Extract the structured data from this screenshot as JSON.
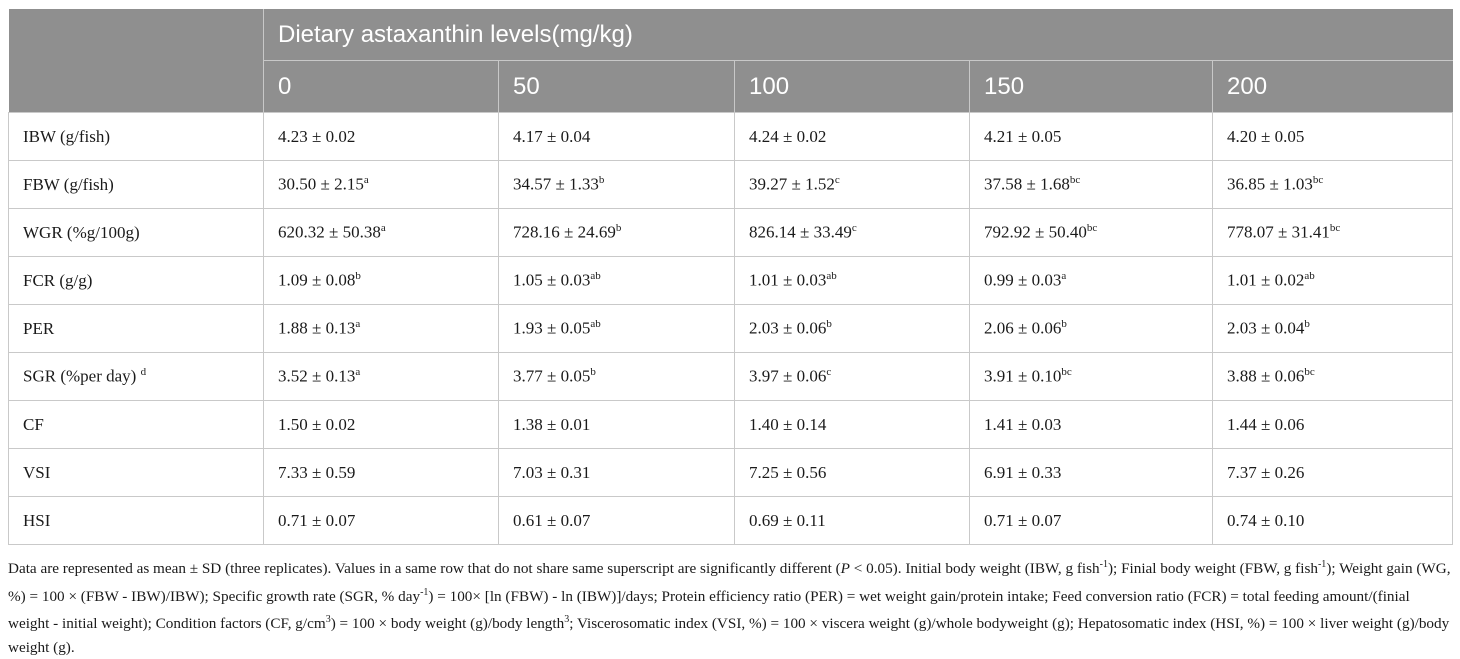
{
  "table": {
    "group_header": "Dietary astaxanthin levels(mg/kg)",
    "columns": [
      "0",
      "50",
      "100",
      "150",
      "200"
    ],
    "rows": [
      {
        "label": "IBW (g/fish)",
        "label_sup": "",
        "cells": [
          {
            "v": "4.23 ± 0.02",
            "s": ""
          },
          {
            "v": "4.17 ± 0.04",
            "s": ""
          },
          {
            "v": "4.24 ± 0.02",
            "s": ""
          },
          {
            "v": "4.21 ± 0.05",
            "s": ""
          },
          {
            "v": "4.20 ± 0.05",
            "s": ""
          }
        ]
      },
      {
        "label": "FBW (g/fish)",
        "label_sup": "",
        "cells": [
          {
            "v": "30.50 ± 2.15",
            "s": "a"
          },
          {
            "v": "34.57 ± 1.33",
            "s": "b"
          },
          {
            "v": "39.27 ± 1.52",
            "s": "c"
          },
          {
            "v": "37.58 ± 1.68",
            "s": "bc"
          },
          {
            "v": "36.85 ± 1.03",
            "s": "bc"
          }
        ]
      },
      {
        "label": "WGR (%g/100g)",
        "label_sup": "",
        "cells": [
          {
            "v": "620.32 ± 50.38",
            "s": "a"
          },
          {
            "v": "728.16 ± 24.69",
            "s": "b"
          },
          {
            "v": "826.14 ± 33.49",
            "s": "c"
          },
          {
            "v": "792.92 ± 50.40",
            "s": "bc"
          },
          {
            "v": "778.07 ± 31.41",
            "s": "bc"
          }
        ]
      },
      {
        "label": "FCR (g/g)",
        "label_sup": "",
        "cells": [
          {
            "v": "1.09 ± 0.08",
            "s": "b"
          },
          {
            "v": "1.05 ± 0.03",
            "s": "ab"
          },
          {
            "v": "1.01 ± 0.03",
            "s": "ab"
          },
          {
            "v": "0.99 ± 0.03",
            "s": "a"
          },
          {
            "v": "1.01 ± 0.02",
            "s": "ab"
          }
        ]
      },
      {
        "label": "PER",
        "label_sup": "",
        "cells": [
          {
            "v": "1.88 ± 0.13",
            "s": "a"
          },
          {
            "v": "1.93 ± 0.05",
            "s": "ab"
          },
          {
            "v": "2.03 ± 0.06",
            "s": "b"
          },
          {
            "v": "2.06 ± 0.06",
            "s": "b"
          },
          {
            "v": "2.03 ± 0.04",
            "s": "b"
          }
        ]
      },
      {
        "label": "SGR (%per day)",
        "label_sup": "d",
        "cells": [
          {
            "v": "3.52 ± 0.13",
            "s": "a"
          },
          {
            "v": "3.77 ± 0.05",
            "s": "b"
          },
          {
            "v": "3.97 ± 0.06",
            "s": "c"
          },
          {
            "v": "3.91 ± 0.10",
            "s": "bc"
          },
          {
            "v": "3.88 ± 0.06",
            "s": "bc"
          }
        ]
      },
      {
        "label": "CF",
        "label_sup": "",
        "cells": [
          {
            "v": "1.50 ± 0.02",
            "s": ""
          },
          {
            "v": "1.38 ± 0.01",
            "s": ""
          },
          {
            "v": "1.40 ± 0.14",
            "s": ""
          },
          {
            "v": "1.41 ± 0.03",
            "s": ""
          },
          {
            "v": "1.44 ± 0.06",
            "s": ""
          }
        ]
      },
      {
        "label": "VSI",
        "label_sup": "",
        "cells": [
          {
            "v": "7.33 ± 0.59",
            "s": ""
          },
          {
            "v": "7.03 ± 0.31",
            "s": ""
          },
          {
            "v": "7.25 ± 0.56",
            "s": ""
          },
          {
            "v": "6.91 ± 0.33",
            "s": ""
          },
          {
            "v": "7.37 ± 0.26",
            "s": ""
          }
        ]
      },
      {
        "label": "HSI",
        "label_sup": "",
        "cells": [
          {
            "v": "0.71 ± 0.07",
            "s": ""
          },
          {
            "v": "0.61 ± 0.07",
            "s": ""
          },
          {
            "v": "0.69 ± 0.11",
            "s": ""
          },
          {
            "v": "0.71 ± 0.07",
            "s": ""
          },
          {
            "v": "0.74 ± 0.10",
            "s": ""
          }
        ]
      }
    ]
  },
  "footnote": {
    "t1": "Data are represented as mean ± SD (three replicates). Values in a same row that do not share same superscript are significantly different (",
    "p_italic": "P",
    "t2": " < 0.05). Initial body weight (IBW, g fish",
    "sup1": "-1",
    "t3": "); Finial body weight (FBW, g fish",
    "sup2": "-1",
    "t4": "); Weight gain (WG, %) = 100 × (FBW - IBW)/IBW); Specific growth rate (SGR, % day",
    "sup3": "-1",
    "t5": ") = 100× [ln (FBW) - ln (IBW)]/days; Protein efficiency ratio (PER) = wet weight gain/protein intake; Feed conversion ratio (FCR) = total feeding amount/(finial weight - initial weight); Condition factors (CF, g/cm",
    "sup4": "3",
    "t6": ") = 100 × body weight (g)/body length",
    "sup5": "3",
    "t7": "; Viscerosomatic index (VSI, %) = 100 × viscera weight (g)/whole bodyweight (g); Hepatosomatic index (HSI, %) = 100 × liver weight (g)/body weight (g)."
  }
}
